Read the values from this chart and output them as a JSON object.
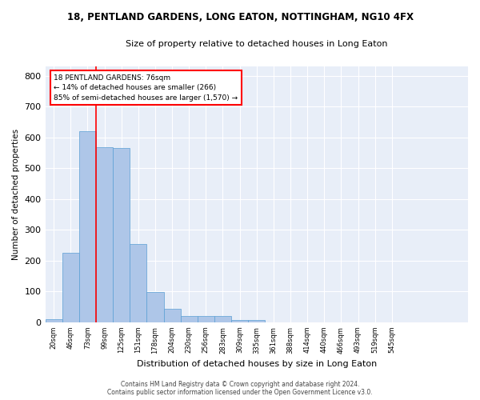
{
  "title1": "18, PENTLAND GARDENS, LONG EATON, NOTTINGHAM, NG10 4FX",
  "title2": "Size of property relative to detached houses in Long Eaton",
  "xlabel": "Distribution of detached houses by size in Long Eaton",
  "ylabel": "Number of detached properties",
  "bar_values": [
    10,
    225,
    620,
    568,
    565,
    253,
    97,
    43,
    20,
    20,
    20,
    8,
    8,
    0,
    0,
    0,
    0,
    0,
    0,
    0,
    0,
    0,
    0,
    0,
    0
  ],
  "bar_color": "#aec6e8",
  "bar_edge_color": "#5a9fd4",
  "background_color": "#e8eef8",
  "tick_labels": [
    "20sqm",
    "46sqm",
    "73sqm",
    "99sqm",
    "125sqm",
    "151sqm",
    "178sqm",
    "204sqm",
    "230sqm",
    "256sqm",
    "283sqm",
    "309sqm",
    "335sqm",
    "361sqm",
    "388sqm",
    "414sqm",
    "440sqm",
    "466sqm",
    "493sqm",
    "519sqm",
    "545sqm"
  ],
  "ylim": [
    0,
    830
  ],
  "yticks": [
    0,
    100,
    200,
    300,
    400,
    500,
    600,
    700,
    800
  ],
  "annotation_line1": "18 PENTLAND GARDENS: 76sqm",
  "annotation_line2": "← 14% of detached houses are smaller (266)",
  "annotation_line3": "85% of semi-detached houses are larger (1,570) →",
  "footer_line1": "Contains HM Land Registry data © Crown copyright and database right 2024.",
  "footer_line2": "Contains public sector information licensed under the Open Government Licence v3.0."
}
